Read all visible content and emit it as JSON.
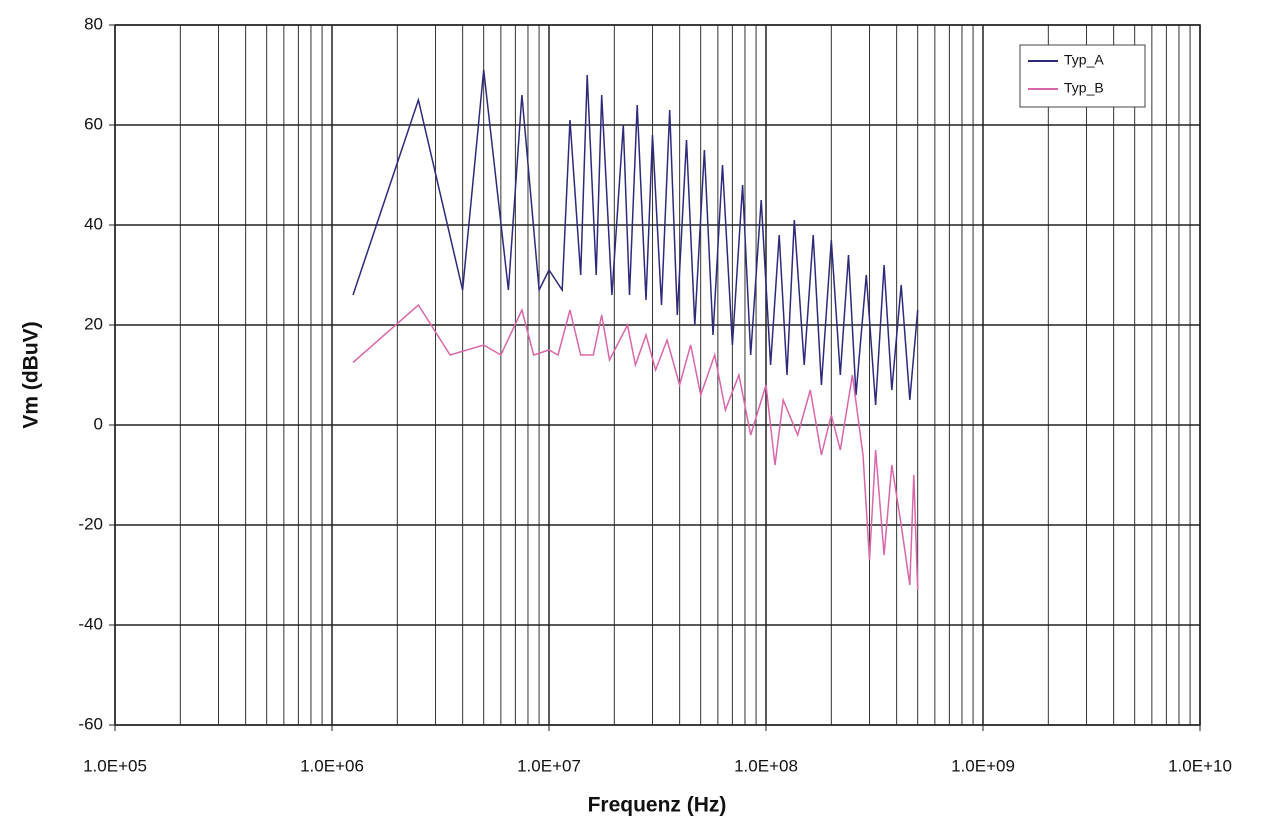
{
  "chart_data": {
    "type": "line",
    "x_label": "Frequenz (Hz)",
    "y_label": "Vm (dBuV)",
    "log_x": true,
    "grid": true,
    "legend": "upper right",
    "xlim": [
      100000,
      10000000000
    ],
    "xticks": [
      {
        "value": 100000,
        "label": "1.0E+05"
      },
      {
        "value": 1000000,
        "label": "1.0E+06"
      },
      {
        "value": 10000000,
        "label": "1.0E+07"
      },
      {
        "value": 100000000,
        "label": "1.0E+08"
      },
      {
        "value": 1000000000,
        "label": "1.0E+09"
      },
      {
        "value": 10000000000,
        "label": "1.0E+10"
      }
    ],
    "ylim": [
      -60,
      80
    ],
    "yticks": [
      -60,
      -40,
      -20,
      0,
      20,
      40,
      60,
      80
    ],
    "series": [
      {
        "name": "Typ_A",
        "color": "#2e2a7a",
        "x": [
          1250000,
          2500000,
          4000000,
          5000000,
          6500000,
          7500000,
          9000000,
          10000000,
          11500000,
          12500000,
          14000000,
          15000000,
          16500000,
          17500000,
          19500000,
          22000000,
          23500000,
          25500000,
          28000000,
          30000000,
          33000000,
          36000000,
          39000000,
          43000000,
          47000000,
          52000000,
          57000000,
          63000000,
          70000000,
          78000000,
          85000000,
          95000000,
          105000000,
          115000000,
          125000000,
          135000000,
          150000000,
          165000000,
          180000000,
          200000000,
          220000000,
          240000000,
          260000000,
          290000000,
          320000000,
          350000000,
          380000000,
          420000000,
          460000000,
          500000000
        ],
        "values": [
          26,
          65,
          27,
          71,
          27,
          66,
          27,
          31,
          27,
          61,
          30,
          70,
          30,
          66,
          26,
          60,
          26,
          64,
          25,
          58,
          24,
          63,
          22,
          57,
          20,
          55,
          18,
          52,
          16,
          48,
          14,
          45,
          12,
          38,
          10,
          41,
          12,
          38,
          8,
          37,
          10,
          34,
          6,
          30,
          4,
          32,
          7,
          28,
          5,
          23
        ]
      },
      {
        "name": "Typ_B",
        "color": "#d966a8",
        "x": [
          1250000,
          2500000,
          3500000,
          5000000,
          6000000,
          7500000,
          8500000,
          10000000,
          11000000,
          12500000,
          14000000,
          16000000,
          17500000,
          19000000,
          23000000,
          25000000,
          28000000,
          31000000,
          35000000,
          40000000,
          45000000,
          50000000,
          58000000,
          65000000,
          75000000,
          85000000,
          100000000,
          110000000,
          120000000,
          140000000,
          160000000,
          180000000,
          200000000,
          220000000,
          250000000,
          280000000,
          300000000,
          320000000,
          350000000,
          380000000,
          420000000,
          460000000,
          480000000,
          500000000
        ],
        "values": [
          12.5,
          24,
          14,
          16,
          14,
          23,
          14,
          15,
          14,
          23,
          14,
          14,
          22,
          13,
          20,
          12,
          18,
          11,
          17,
          8,
          16,
          6,
          14,
          3,
          10,
          -2,
          8,
          -8,
          5,
          -2,
          7,
          -6,
          2,
          -5,
          10,
          -6,
          -27,
          -5,
          -26,
          -8,
          -20,
          -32,
          -10,
          -33
        ]
      }
    ]
  }
}
